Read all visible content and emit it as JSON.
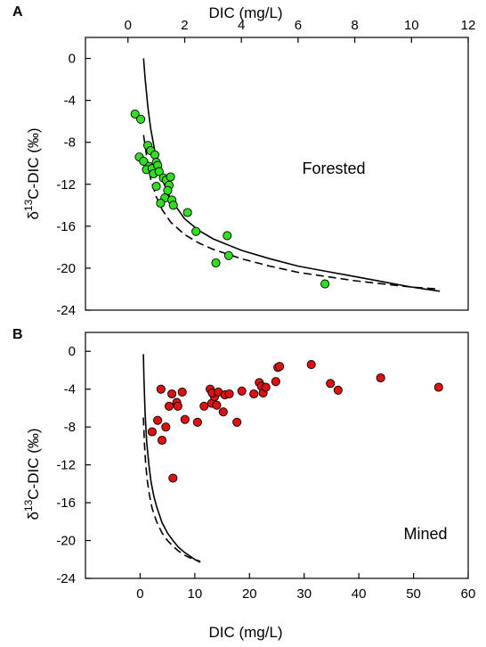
{
  "chart_data": [
    {
      "type": "scatter",
      "panel_label": "A",
      "annotation": "Forested",
      "xlabel": "DIC (mg/L)",
      "ylabel": "δ13C-DIC (‰)",
      "xlim": [
        -1.5,
        12
      ],
      "ylim": [
        -24,
        2
      ],
      "xticks": [
        0,
        2,
        4,
        6,
        8,
        10,
        12
      ],
      "yticks": [
        0,
        -4,
        -8,
        -12,
        -16,
        -20,
        -24
      ],
      "x_axis_position": "top",
      "point_color": "#33dd22",
      "x": [
        0.25,
        0.45,
        0.4,
        0.55,
        0.7,
        0.8,
        0.95,
        0.75,
        0.65,
        0.85,
        1.0,
        1.05,
        0.9,
        1.1,
        1.0,
        1.25,
        1.35,
        1.45,
        1.5,
        1.4,
        1.3,
        1.55,
        1.6,
        1.15,
        2.1,
        2.4,
        3.5,
        3.55,
        3.1,
        6.95
      ],
      "y": [
        -5.3,
        -5.8,
        -9.4,
        -9.8,
        -8.3,
        -8.8,
        -9.2,
        -10.3,
        -10.6,
        -10.5,
        -9.9,
        -10.2,
        -11.0,
        -10.8,
        -12.2,
        -11.4,
        -11.6,
        -12.1,
        -11.3,
        -12.6,
        -13.3,
        -13.5,
        -14.0,
        -13.8,
        -14.7,
        -16.5,
        -16.9,
        -18.8,
        -19.5,
        -21.5
      ],
      "curves": [
        {
          "style": "solid",
          "x": [
            0.55,
            0.6,
            0.7,
            0.8,
            1.0,
            1.2,
            1.5,
            2.0,
            2.5,
            3.0,
            4.0,
            5.0,
            6.0,
            7.0,
            8.0,
            9.0,
            10.0,
            11.0
          ],
          "y": [
            0.0,
            -1.8,
            -4.6,
            -6.7,
            -9.6,
            -11.5,
            -13.4,
            -15.3,
            -16.4,
            -17.2,
            -18.3,
            -19.1,
            -19.8,
            -20.3,
            -20.8,
            -21.3,
            -21.8,
            -22.2
          ]
        },
        {
          "style": "dashed",
          "x": [
            0.55,
            0.65,
            0.8,
            1.0,
            1.2,
            1.5,
            2.0,
            2.5,
            3.0,
            4.0,
            5.0,
            6.0,
            7.0,
            8.0,
            9.0,
            10.0,
            11.0
          ],
          "y": [
            -7.3,
            -9.2,
            -11.5,
            -13.2,
            -14.4,
            -15.6,
            -16.8,
            -17.6,
            -18.2,
            -19.1,
            -19.8,
            -20.4,
            -20.8,
            -21.2,
            -21.5,
            -21.8,
            -22.0
          ]
        }
      ]
    },
    {
      "type": "scatter",
      "panel_label": "B",
      "annotation": "Mined",
      "xlabel": "DIC (mg/L)",
      "ylabel": "δ13C-DIC (‰)",
      "xlim": [
        -10,
        60
      ],
      "ylim": [
        -24,
        2
      ],
      "xticks": [
        0,
        10,
        20,
        30,
        40,
        50,
        60
      ],
      "yticks": [
        0,
        -4,
        -8,
        -12,
        -16,
        -20,
        -24
      ],
      "x_axis_position": "bottom",
      "point_color": "#dd1111",
      "x": [
        2.2,
        3.2,
        3.8,
        4.0,
        4.7,
        5.3,
        5.8,
        6.0,
        6.7,
        6.9,
        7.7,
        8.2,
        10.5,
        11.7,
        12.8,
        13.1,
        13.6,
        13.2,
        14.0,
        14.3,
        15.2,
        15.5,
        16.3,
        17.7,
        18.6,
        20.8,
        21.8,
        22.2,
        22.5,
        23.0,
        24.8,
        25.2,
        25.5,
        31.3,
        34.8,
        36.2,
        44.0,
        54.6
      ],
      "y": [
        -8.5,
        -7.3,
        -4.0,
        -9.4,
        -8.0,
        -5.8,
        -4.5,
        -13.4,
        -5.4,
        -5.8,
        -4.3,
        -7.2,
        -7.5,
        -5.8,
        -4.0,
        -5.5,
        -4.8,
        -4.4,
        -5.7,
        -4.3,
        -6.4,
        -4.6,
        -4.5,
        -7.5,
        -4.2,
        -4.5,
        -3.3,
        -3.7,
        -4.4,
        -3.8,
        -3.2,
        -1.7,
        -1.6,
        -1.4,
        -3.4,
        -4.1,
        -2.8,
        -3.8
      ],
      "curves": [
        {
          "style": "solid",
          "x": [
            0.6,
            0.7,
            0.9,
            1.2,
            1.6,
            2.0,
            2.5,
            3.0,
            4.0,
            5.0,
            6.0,
            7.0,
            8.0,
            9.0,
            10.0,
            11.0
          ],
          "y": [
            -0.3,
            -2.8,
            -6.5,
            -9.6,
            -12.0,
            -13.8,
            -15.3,
            -16.4,
            -18.1,
            -19.2,
            -20.0,
            -20.7,
            -21.2,
            -21.6,
            -22.0,
            -22.3
          ]
        },
        {
          "style": "dashed",
          "x": [
            0.6,
            0.8,
            1.0,
            1.3,
            1.7,
            2.2,
            3.0,
            4.0,
            5.0,
            6.0,
            7.0,
            8.0,
            9.0,
            10.0,
            11.0
          ],
          "y": [
            -7.0,
            -9.8,
            -11.8,
            -13.6,
            -15.2,
            -16.6,
            -18.0,
            -19.2,
            -20.0,
            -20.6,
            -21.1,
            -21.5,
            -21.8,
            -22.0,
            -22.2
          ]
        }
      ]
    }
  ]
}
